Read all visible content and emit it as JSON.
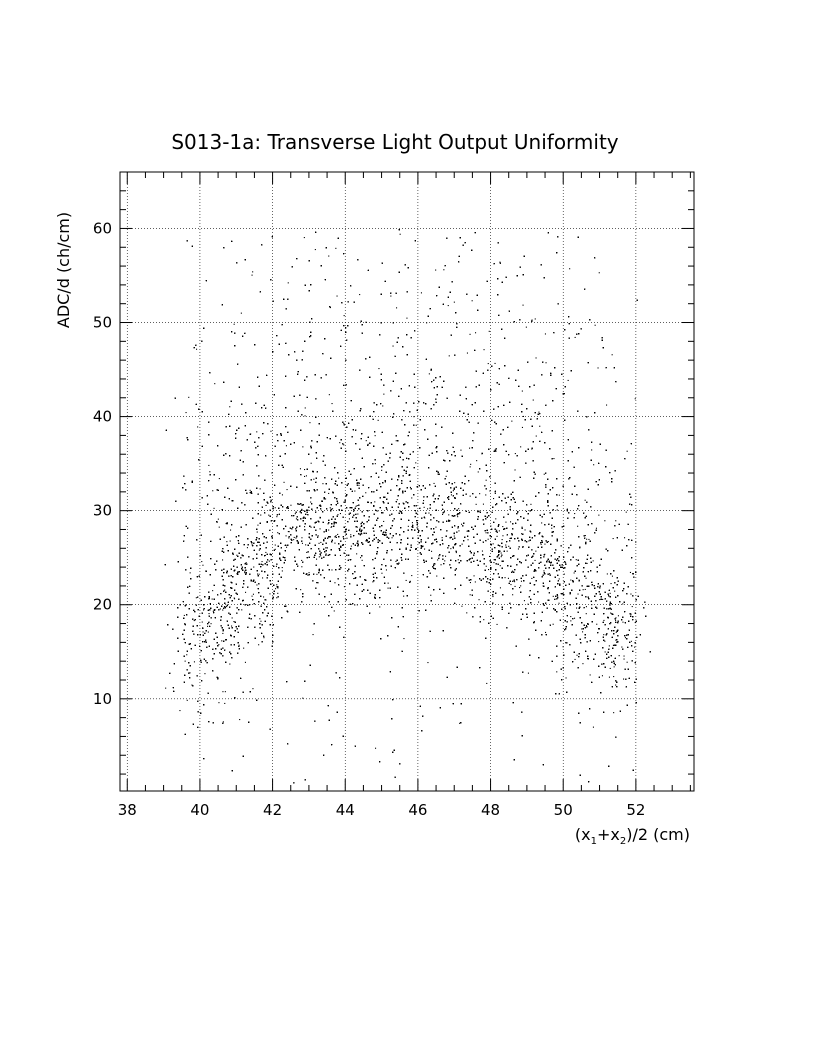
{
  "chart_data": {
    "type": "scatter",
    "title": "S013-1a: Transverse Light Output Uniformity",
    "xlabel": {
      "pre": "(x",
      "sub1": "1",
      "mid": "+x",
      "sub2": "2",
      "post": ")/2 (cm)"
    },
    "ylabel": "ADC/d (ch/cm)",
    "xlim": [
      37.8,
      53.6
    ],
    "ylim": [
      0.2,
      66
    ],
    "x_ticks": [
      38,
      40,
      42,
      44,
      46,
      48,
      50,
      52
    ],
    "y_ticks": [
      10,
      20,
      30,
      40,
      50,
      60
    ],
    "grid": true,
    "point_color": "#000000",
    "density_model": {
      "x_range": [
        39.0,
        52.4
      ],
      "y_range": [
        1,
        60
      ],
      "dense_band": [
        {
          "x": 40.0,
          "y": 17
        },
        {
          "x": 41.0,
          "y": 22
        },
        {
          "x": 42.0,
          "y": 26
        },
        {
          "x": 43.0,
          "y": 28
        },
        {
          "x": 44.0,
          "y": 28.5
        },
        {
          "x": 45.0,
          "y": 28.5
        },
        {
          "x": 46.0,
          "y": 28.5
        },
        {
          "x": 47.0,
          "y": 28
        },
        {
          "x": 48.0,
          "y": 27
        },
        {
          "x": 49.0,
          "y": 25
        },
        {
          "x": 50.0,
          "y": 22
        },
        {
          "x": 51.0,
          "y": 19
        },
        {
          "x": 51.5,
          "y": 17
        }
      ]
    }
  }
}
